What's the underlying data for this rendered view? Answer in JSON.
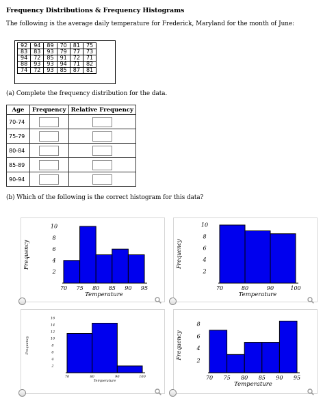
{
  "title": "Frequency Distributions & Frequency Histograms",
  "intro": "The following is the average daily temperature for Frederick, Maryland for the month of June:",
  "temperature_data": [
    [
      "92",
      "94",
      "89",
      "70",
      "81",
      "75"
    ],
    [
      "83",
      "83",
      "93",
      "79",
      "77",
      "73"
    ],
    [
      "94",
      "72",
      "85",
      "91",
      "72",
      "71"
    ],
    [
      "88",
      "93",
      "93",
      "94",
      "71",
      "82"
    ],
    [
      "74",
      "72",
      "93",
      "85",
      "87",
      "81"
    ]
  ],
  "part_a": "(a) Complete the frequency distribution for the data.",
  "freq_table": {
    "headers": [
      "Age",
      "Frequency",
      "Relative Frequency"
    ],
    "classes": [
      "70-74",
      "75-79",
      "80-84",
      "85-89",
      "90-94"
    ]
  },
  "part_b": "(b) Which of the following is the correct histogram for this data?",
  "chart_data": [
    {
      "type": "bar",
      "option": "A",
      "xlabel": "Temperature",
      "ylabel": "Frequency",
      "x_ticks": [
        "70",
        "75",
        "80",
        "85",
        "90",
        "95"
      ],
      "y_ticks": [
        "2",
        "4",
        "6",
        "8",
        "10"
      ],
      "ylim": [
        0,
        10
      ],
      "bin_edges": [
        70,
        75,
        80,
        85,
        90,
        95
      ],
      "values": [
        4,
        10,
        5,
        6,
        5
      ]
    },
    {
      "type": "bar",
      "option": "B",
      "xlabel": "Temperature",
      "ylabel": "Frequency",
      "x_ticks": [
        "70",
        "80",
        "90",
        "100"
      ],
      "y_ticks": [
        "2",
        "4",
        "6",
        "8",
        "10"
      ],
      "ylim": [
        0,
        10
      ],
      "bin_edges": [
        70,
        80,
        90,
        100
      ],
      "values": [
        10,
        9,
        8.5
      ]
    },
    {
      "type": "bar",
      "option": "C",
      "xlabel": "Temperature",
      "ylabel": "Frequency",
      "x_ticks": [
        "70",
        "80",
        "90",
        "100"
      ],
      "y_ticks": [
        "2",
        "4",
        "6",
        "8",
        "10",
        "12",
        "14",
        "16"
      ],
      "ylim": [
        0,
        16
      ],
      "bin_edges": [
        70,
        80,
        90,
        100
      ],
      "values": [
        11.5,
        14.5,
        2
      ]
    },
    {
      "type": "bar",
      "option": "D",
      "xlabel": "Temperature",
      "ylabel": "Frequency",
      "x_ticks": [
        "70",
        "75",
        "80",
        "85",
        "90",
        "95"
      ],
      "y_ticks": [
        "2",
        "4",
        "6",
        "8"
      ],
      "ylim": [
        0,
        9
      ],
      "bin_edges": [
        70,
        75,
        80,
        85,
        90,
        95
      ],
      "values": [
        7,
        3,
        5,
        5,
        8.5
      ]
    }
  ]
}
